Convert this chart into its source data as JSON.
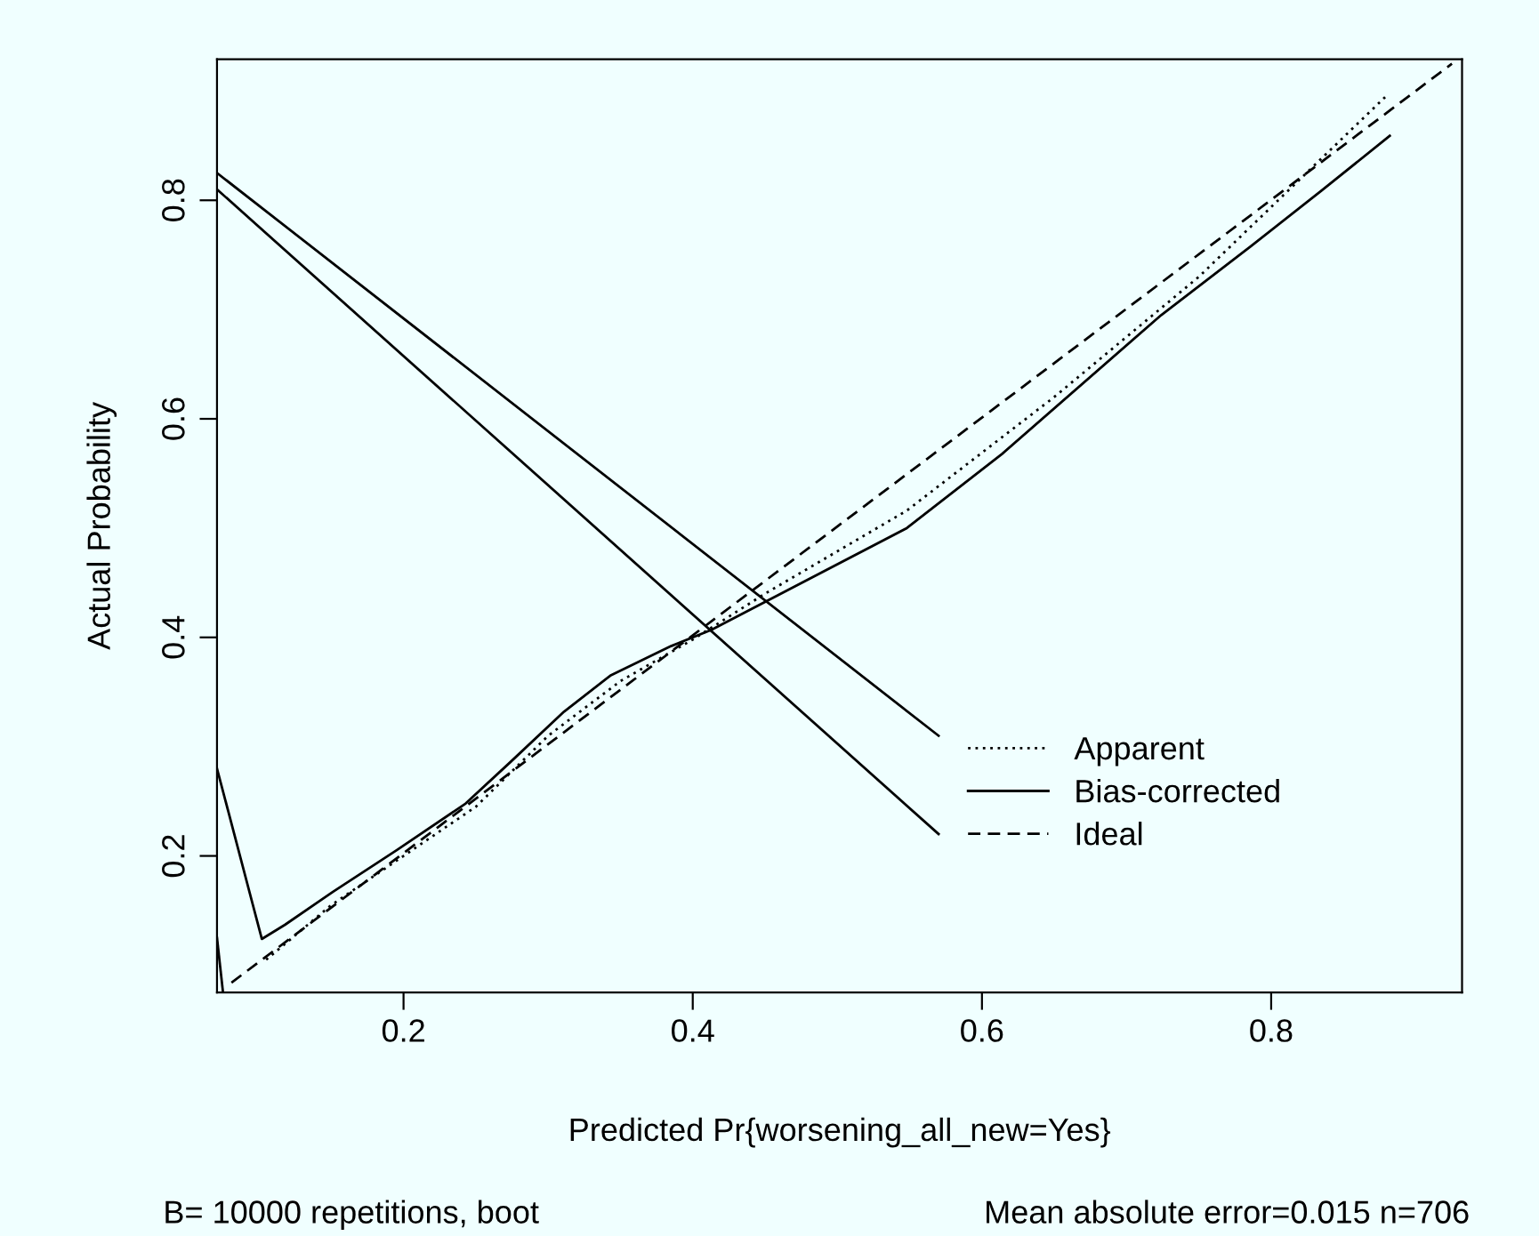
{
  "chart_data": {
    "type": "line",
    "xlabel": "Predicted Pr{worsening_all_new=Yes}",
    "ylabel": "Actual Probability",
    "annotations": [
      "B= 10000 repetitions, boot",
      "Mean absolute error=0.015 n=706"
    ],
    "xlim": [
      0.071,
      0.932
    ],
    "ylim": [
      0.075,
      0.929
    ],
    "xticks": [
      0.2,
      0.4,
      0.6,
      0.8
    ],
    "yticks": [
      0.2,
      0.4,
      0.6,
      0.8
    ],
    "grid": false,
    "legend": "right",
    "marker": "none",
    "series": [
      {
        "name": "Apparent",
        "color": "#000000",
        "line_style": "dotted",
        "x": [
          0.105,
          0.15,
          0.2,
          0.25,
          0.3,
          0.35,
          0.4,
          0.45,
          0.548,
          0.65,
          0.75,
          0.88
        ],
        "values": [
          0.105,
          0.155,
          0.2,
          0.245,
          0.31,
          0.36,
          0.398,
          0.44,
          0.516,
          0.62,
          0.73,
          0.896
        ]
      },
      {
        "name": "Bias-corrected",
        "color": "#000000",
        "line_style": "solid",
        "x": [
          0.071,
          0.102,
          0.118,
          0.151,
          0.195,
          0.243,
          0.274,
          0.311,
          0.343,
          0.385,
          0.413,
          0.548,
          0.614,
          0.724,
          0.786,
          0.835,
          0.882
        ],
        "values": [
          0.28,
          0.124,
          0.137,
          0.167,
          0.205,
          0.248,
          0.286,
          0.332,
          0.365,
          0.392,
          0.407,
          0.5,
          0.568,
          0.695,
          0.758,
          0.809,
          0.859
        ]
      },
      {
        "name": "Ideal",
        "color": "#000000",
        "line_style": "dashed",
        "x": [
          0.081,
          0.925
        ],
        "values": [
          0.084,
          0.925
        ]
      },
      {
        "color": "#000000",
        "line_style": "solid",
        "x": [
          0.071,
          0.57
        ],
        "values": [
          0.825,
          0.31
        ]
      },
      {
        "color": "#000000",
        "line_style": "solid",
        "x": [
          0.071,
          0.57
        ],
        "values": [
          0.81,
          0.22
        ]
      },
      {
        "color": "#000000",
        "line_style": "solid",
        "x": [
          0.071,
          0.075
        ],
        "values": [
          0.125,
          0.077
        ]
      }
    ]
  }
}
